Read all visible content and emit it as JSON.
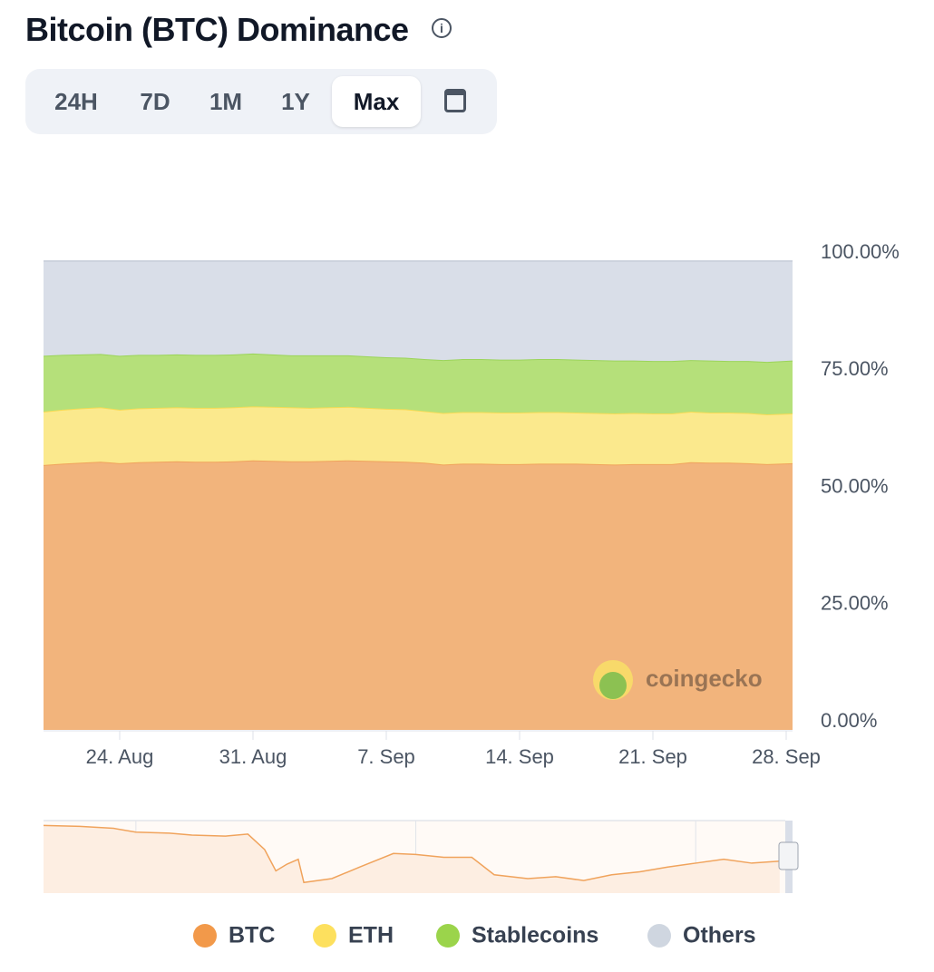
{
  "header": {
    "title": "Bitcoin (BTC) Dominance",
    "ranges": [
      "24H",
      "7D",
      "1M",
      "1Y",
      "Max"
    ],
    "active_range": "Max"
  },
  "chart_data": {
    "type": "stacked_area",
    "categories": [
      null,
      null,
      null,
      null,
      "24. Aug",
      null,
      null,
      null,
      null,
      null,
      null,
      "31. Aug",
      null,
      null,
      null,
      null,
      null,
      null,
      "7. Sep",
      null,
      null,
      null,
      null,
      null,
      null,
      "14. Sep",
      null,
      null,
      null,
      null,
      null,
      null,
      "21. Sep",
      null,
      null,
      null,
      null,
      null,
      null,
      "28. Sep"
    ],
    "series": [
      {
        "name": "BTC",
        "color": "#f2b47c",
        "line_color": "#f0a35c",
        "legend_color": "#f2994a",
        "values": [
          56.5,
          56.8,
          57.0,
          57.2,
          56.9,
          57.1,
          57.2,
          57.3,
          57.2,
          57.2,
          57.3,
          57.5,
          57.4,
          57.3,
          57.3,
          57.4,
          57.5,
          57.4,
          57.3,
          57.2,
          57.0,
          56.6,
          56.8,
          56.8,
          56.7,
          56.7,
          56.8,
          56.8,
          56.8,
          56.7,
          56.6,
          56.7,
          56.7,
          56.7,
          57.1,
          57.0,
          57.0,
          56.9,
          56.7,
          56.9
        ]
      },
      {
        "name": "ETH",
        "color": "#fbe98d",
        "line_color": "#f8db55",
        "legend_color": "#fde05e",
        "values": [
          11.4,
          11.5,
          11.6,
          11.6,
          11.4,
          11.5,
          11.5,
          11.5,
          11.5,
          11.5,
          11.5,
          11.5,
          11.5,
          11.5,
          11.4,
          11.4,
          11.4,
          11.3,
          11.2,
          11.2,
          11.0,
          11.0,
          11.0,
          11.0,
          11.0,
          11.0,
          11.0,
          11.0,
          10.9,
          10.9,
          10.9,
          10.9,
          10.8,
          10.8,
          10.8,
          10.7,
          10.7,
          10.7,
          10.6,
          10.6
        ]
      },
      {
        "name": "Stablecoins",
        "color": "#b5e07a",
        "line_color": "#9bd45a",
        "legend_color": "#9bd44b",
        "values": [
          11.9,
          11.7,
          11.5,
          11.4,
          11.5,
          11.4,
          11.3,
          11.3,
          11.3,
          11.3,
          11.3,
          11.3,
          11.2,
          11.1,
          11.2,
          11.1,
          11.0,
          11.0,
          11.0,
          11.0,
          11.1,
          11.3,
          11.3,
          11.3,
          11.3,
          11.3,
          11.3,
          11.3,
          11.3,
          11.3,
          11.3,
          11.2,
          11.2,
          11.2,
          11.0,
          11.1,
          11.0,
          11.1,
          11.2,
          11.3
        ]
      },
      {
        "name": "Others",
        "color": "#d9dee8",
        "line_color": "#cdd3de",
        "legend_color": "#cfd6e0",
        "values": [
          20.2,
          20.0,
          19.9,
          19.8,
          20.2,
          20.0,
          20.0,
          19.9,
          20.0,
          20.0,
          19.9,
          19.7,
          19.9,
          20.1,
          20.1,
          20.1,
          20.1,
          20.3,
          20.5,
          20.6,
          20.9,
          21.1,
          20.9,
          20.9,
          21.0,
          21.0,
          20.9,
          20.9,
          21.0,
          21.1,
          21.2,
          21.2,
          21.3,
          21.3,
          21.1,
          21.2,
          21.3,
          21.3,
          21.5,
          21.2
        ]
      }
    ],
    "ylim": [
      0,
      100
    ],
    "yticks": [
      {
        "value": 0,
        "label": "0.00%"
      },
      {
        "value": 25,
        "label": "25.00%"
      },
      {
        "value": 50,
        "label": "50.00%"
      },
      {
        "value": 75,
        "label": "75.00%"
      },
      {
        "value": 100,
        "label": "100.00%"
      }
    ],
    "watermark": "coingecko",
    "navigator": {
      "x": [
        2013.35,
        2014.0,
        2014.6,
        2015.0,
        2015.6,
        2016.0,
        2016.6,
        2017.0,
        2017.3,
        2017.5,
        2017.7,
        2017.9,
        2018.0,
        2018.5,
        2019.0,
        2019.6,
        2020.0,
        2020.5,
        2021.0,
        2021.4,
        2022.0,
        2022.5,
        2023.0,
        2023.5,
        2024.0,
        2024.5,
        2025.0,
        2025.5,
        2026.0,
        2026.5
      ],
      "values": [
        95,
        94,
        92,
        88,
        87,
        85,
        84,
        86,
        70,
        48,
        55,
        60,
        36,
        40,
        52,
        66,
        65,
        62,
        62,
        44,
        40,
        42,
        38,
        44,
        47,
        52,
        56,
        60,
        56,
        58
      ],
      "xlim": [
        2013.35,
        2026.6
      ],
      "ylim": [
        25,
        100
      ],
      "xticks": [
        2015,
        2020,
        2025
      ]
    }
  }
}
